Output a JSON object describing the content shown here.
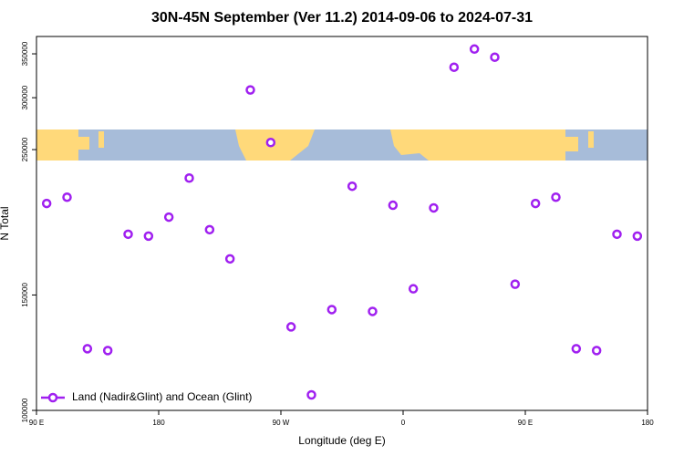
{
  "chart_data": {
    "type": "scatter",
    "title": "30N-45N September (Ver 11.2)   2014-09-06 to 2024-07-31",
    "x_label": "Longitude (deg E)",
    "y_label": "N Total",
    "x": [
      97.5,
      112.5,
      127.5,
      142.5,
      157.5,
      172.5,
      187.5,
      202.5,
      217.5,
      232.5,
      247.5,
      262.5,
      277.5,
      292.5,
      307.5,
      322.5,
      337.5,
      352.5,
      367.5,
      382.5,
      397.5,
      412.5,
      427.5,
      442.5,
      457.5,
      472.5,
      487.5,
      502.5,
      517.5,
      532.5
    ],
    "series": [
      {
        "name": "Land (Nadir&Glint) and Ocean (Glint)",
        "color": "#a020f0",
        "values": [
          206900,
          211500,
          124200,
          123400,
          185700,
          184500,
          197200,
          226200,
          188700,
          170300,
          308300,
          256300,
          134100,
          105600,
          142500,
          219800,
          141600,
          205600,
          153300,
          203700,
          333900,
          355900,
          345900,
          155800,
          206900,
          211500,
          124200,
          123400,
          185700,
          184500
        ]
      }
    ],
    "xlim": [
      90,
      540
    ],
    "xticks": [
      {
        "value": 90,
        "label": "90 E"
      },
      {
        "value": 180,
        "label": "180"
      },
      {
        "value": 270,
        "label": "90 W"
      },
      {
        "value": 360,
        "label": "0"
      },
      {
        "value": 450,
        "label": "90 E"
      },
      {
        "value": 540,
        "label": "180"
      }
    ],
    "ylim": [
      100000,
      372000
    ],
    "yticks": [
      100000,
      150000,
      250000,
      300000,
      350000
    ],
    "y_log": true,
    "legend": "lower left"
  }
}
